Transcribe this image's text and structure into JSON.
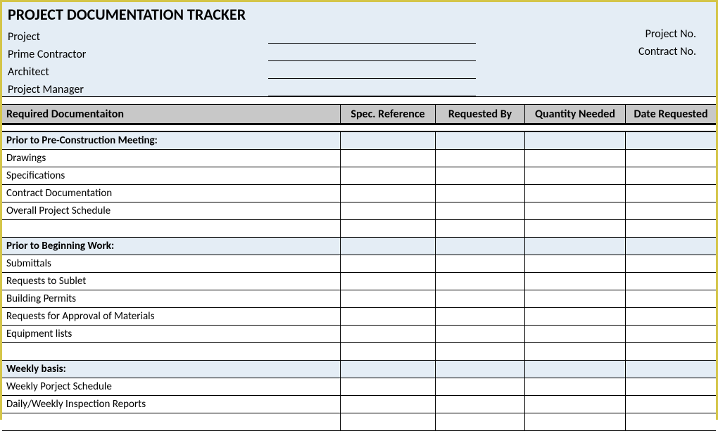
{
  "colors": {
    "outer_border": "#d4c548",
    "header_bg": "#e4edf5",
    "column_header_bg": "#c8c8c8",
    "section_bg": "#e4edf5",
    "border": "#000000",
    "text": "#000000",
    "white": "#ffffff"
  },
  "title": "PROJECT DOCUMENTATION TRACKER",
  "header_fields": {
    "project": "Project",
    "prime_contractor": "Prime Contractor",
    "architect": "Architect",
    "project_manager": "Project Manager",
    "project_no": "Project No.",
    "contract_no": "Contract No."
  },
  "columns": {
    "required_doc": "Required Documentaiton",
    "spec_ref": "Spec. Reference",
    "requested_by": "Requested By",
    "quantity_needed": "Quantity Needed",
    "date_requested": "Date Requested"
  },
  "sections": [
    {
      "title": "Prior to Pre-Construction Meeting:",
      "items": [
        "Drawings",
        "Specifications",
        "Contract Documentation",
        "Overall Project Schedule"
      ]
    },
    {
      "title": "Prior to Beginning Work:",
      "items": [
        "Submittals",
        "Requests to Sublet",
        "Building Permits",
        "Requests for Approval of Materials",
        "Equipment lists"
      ]
    },
    {
      "title": "Weekly basis:",
      "items": [
        "Weekly Porject Schedule",
        "Daily/Weekly Inspection Reports"
      ]
    }
  ]
}
